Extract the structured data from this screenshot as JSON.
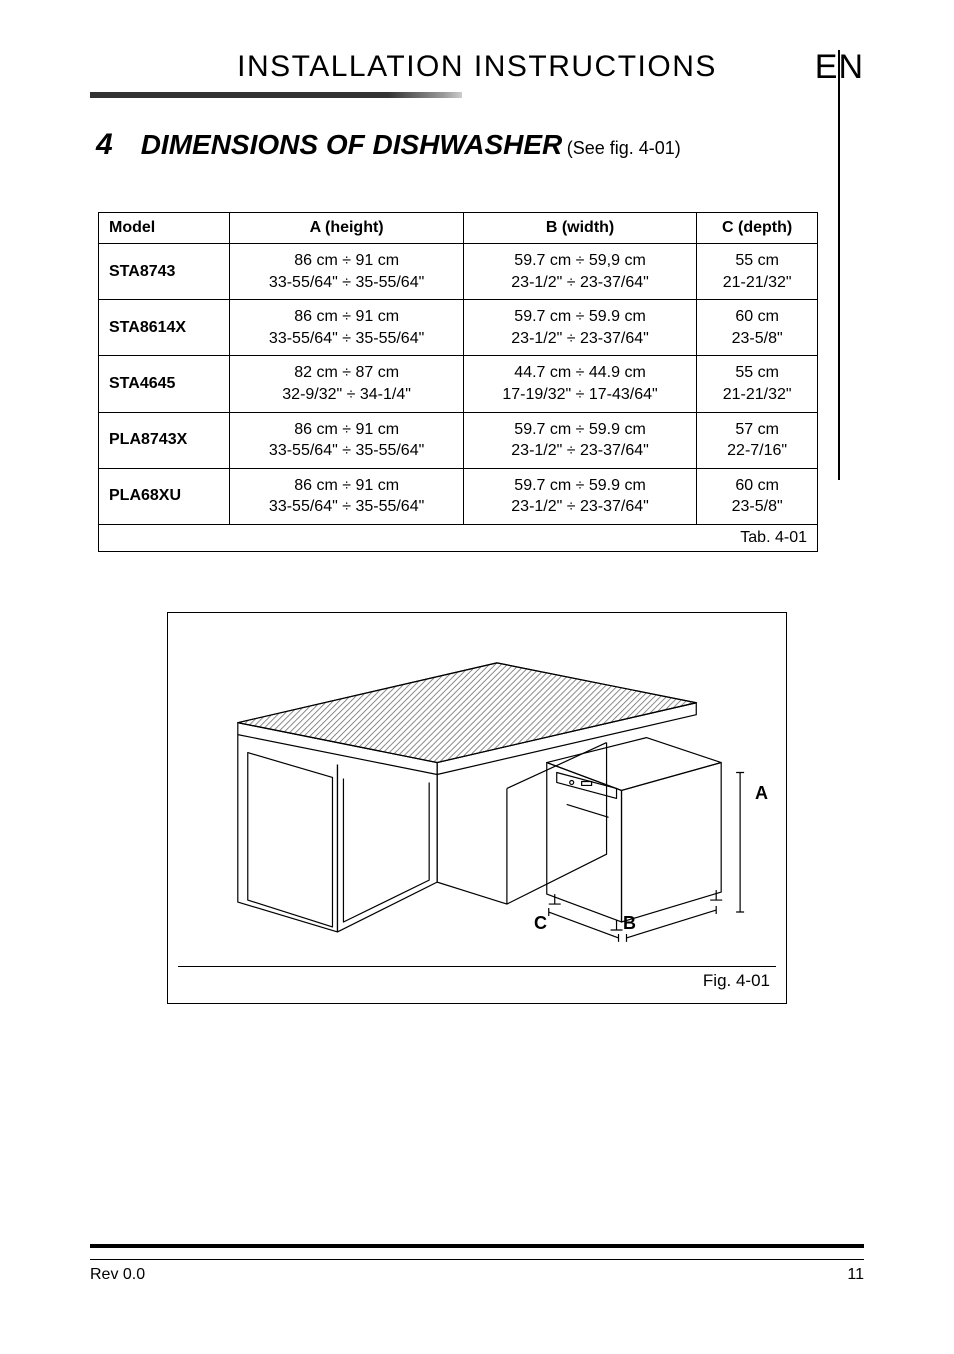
{
  "header": {
    "title": "INSTALLATION INSTRUCTIONS",
    "lang": "EN",
    "underline_gradient_from": "#333333",
    "underline_gradient_to": "#cccccc"
  },
  "section": {
    "number": "4",
    "title": "DIMENSIONS OF DISHWASHER",
    "ref": "(See fig. 4-01)"
  },
  "table": {
    "columns": [
      "Model",
      "A (height)",
      "B (width)",
      "C (depth)"
    ],
    "rows": [
      {
        "model": "STA8743",
        "a": "86 cm ÷ 91 cm\n33-55/64\" ÷ 35-55/64\"",
        "b": "59.7 cm ÷ 59,9 cm\n23-1/2\" ÷ 23-37/64\"",
        "c": "55 cm\n21-21/32\""
      },
      {
        "model": "STA8614X",
        "a": "86 cm ÷ 91 cm\n33-55/64\" ÷ 35-55/64\"",
        "b": "59.7 cm ÷ 59.9 cm\n23-1/2\" ÷ 23-37/64\"",
        "c": "60 cm\n23-5/8\""
      },
      {
        "model": "STA4645",
        "a": "82 cm ÷ 87 cm\n32-9/32\" ÷ 34-1/4\"",
        "b": "44.7 cm ÷ 44.9 cm\n17-19/32\" ÷ 17-43/64\"",
        "c": "55 cm\n21-21/32\""
      },
      {
        "model": "PLA8743X",
        "a": "86 cm ÷ 91 cm\n33-55/64\" ÷ 35-55/64\"",
        "b": "59.7 cm ÷ 59.9 cm\n23-1/2\" ÷ 23-37/64\"",
        "c": "57 cm\n22-7/16\""
      },
      {
        "model": "PLA68XU",
        "a": "86 cm ÷ 91 cm\n33-55/64\" ÷ 35-55/64\"",
        "b": "59.7 cm ÷ 59.9 cm\n23-1/2\" ÷ 23-37/64\"",
        "c": "60 cm\n23-5/8\""
      }
    ],
    "caption": "Tab. 4-01",
    "border_color": "#000000",
    "font_size": 16
  },
  "figure": {
    "caption": "Fig. 4-01",
    "labels": {
      "a": "A",
      "b": "B",
      "c": "C"
    },
    "line_color": "#000000",
    "line_width": 1.2,
    "hatch_color": "#555555"
  },
  "footer": {
    "rev": "Rev 0.0",
    "page": "11",
    "rule_color": "#000000"
  }
}
